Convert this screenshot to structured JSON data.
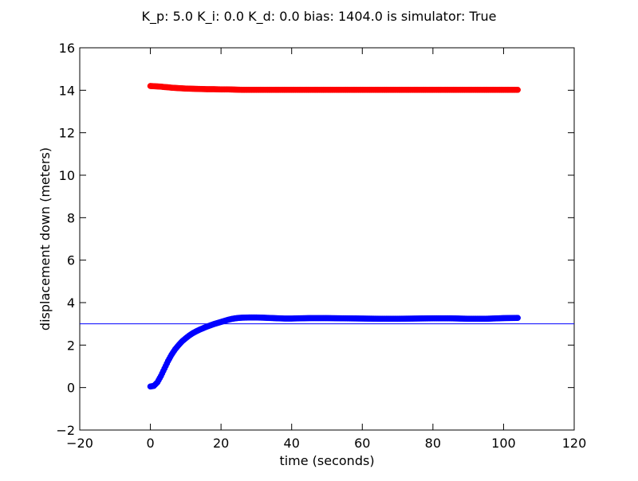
{
  "chart_data": {
    "type": "scatter",
    "title": "K_p: 5.0 K_i: 0.0 K_d: 0.0 bias: 1404.0 is simulator: True",
    "xlabel": "time (seconds)",
    "ylabel": "displacement down (meters)",
    "xlim": [
      -20,
      120
    ],
    "ylim": [
      -2,
      16
    ],
    "xticks": [
      -20,
      0,
      20,
      40,
      60,
      80,
      100,
      120
    ],
    "yticks": [
      -2,
      0,
      2,
      4,
      6,
      8,
      10,
      12,
      14,
      16
    ],
    "xtick_labels": [
      "−20",
      "0",
      "20",
      "40",
      "60",
      "80",
      "100",
      "120"
    ],
    "ytick_labels": [
      "−2",
      "0",
      "2",
      "4",
      "6",
      "8",
      "10",
      "12",
      "14",
      "16"
    ],
    "grid": false,
    "legend": null,
    "series": [
      {
        "kind": "scatter",
        "color": "#ff0000",
        "x": [
          0,
          1,
          2,
          3,
          4,
          5,
          6,
          7,
          8,
          9,
          10,
          12,
          14,
          16,
          18,
          20,
          22,
          24,
          26,
          28,
          30,
          35,
          40,
          45,
          50,
          55,
          60,
          65,
          70,
          75,
          80,
          85,
          90,
          95,
          100,
          104
        ],
        "y": [
          14.2,
          14.19,
          14.18,
          14.17,
          14.15,
          14.14,
          14.12,
          14.11,
          14.1,
          14.09,
          14.08,
          14.07,
          14.06,
          14.05,
          14.05,
          14.04,
          14.04,
          14.03,
          14.02,
          14.02,
          14.02,
          14.02,
          14.02,
          14.02,
          14.02,
          14.02,
          14.02,
          14.02,
          14.02,
          14.02,
          14.02,
          14.02,
          14.02,
          14.02,
          14.02,
          14.02
        ]
      },
      {
        "kind": "scatter",
        "color": "#0000ff",
        "x": [
          0,
          1,
          2,
          3,
          4,
          5,
          6,
          7,
          8,
          9,
          10,
          11,
          12,
          13,
          14,
          15,
          16,
          17,
          18,
          19,
          20,
          21,
          22,
          23,
          24,
          25,
          26,
          28,
          30,
          32,
          35,
          38,
          40,
          42,
          45,
          48,
          50,
          55,
          60,
          65,
          70,
          75,
          80,
          85,
          90,
          95,
          100,
          104
        ],
        "y": [
          0.05,
          0.08,
          0.25,
          0.55,
          0.9,
          1.25,
          1.55,
          1.8,
          2.0,
          2.18,
          2.32,
          2.45,
          2.56,
          2.65,
          2.73,
          2.8,
          2.87,
          2.93,
          2.99,
          3.04,
          3.09,
          3.14,
          3.19,
          3.23,
          3.26,
          3.28,
          3.29,
          3.3,
          3.3,
          3.29,
          3.27,
          3.25,
          3.25,
          3.26,
          3.27,
          3.27,
          3.27,
          3.26,
          3.25,
          3.24,
          3.24,
          3.25,
          3.26,
          3.26,
          3.24,
          3.24,
          3.27,
          3.28
        ]
      },
      {
        "kind": "hline",
        "color": "#0000ff",
        "y": 3.0
      }
    ]
  }
}
